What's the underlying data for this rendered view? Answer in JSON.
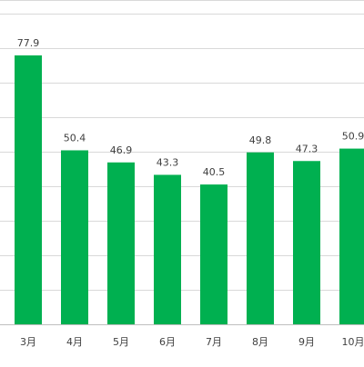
{
  "chart_data": {
    "type": "bar",
    "title": "",
    "xlabel": "",
    "ylabel": "",
    "categories": [
      "3月",
      "4月",
      "5月",
      "6月",
      "7月",
      "8月",
      "9月",
      "10月"
    ],
    "values": [
      77.9,
      50.4,
      46.9,
      43.3,
      40.5,
      49.8,
      47.3,
      50.9
    ],
    "ylim": [
      0,
      100
    ],
    "grid": true,
    "legend": "none",
    "colors": {
      "bar": "#00b050",
      "gridline": "#d9d9d9",
      "label": "#404040",
      "axis": "#bfbfbf"
    }
  }
}
